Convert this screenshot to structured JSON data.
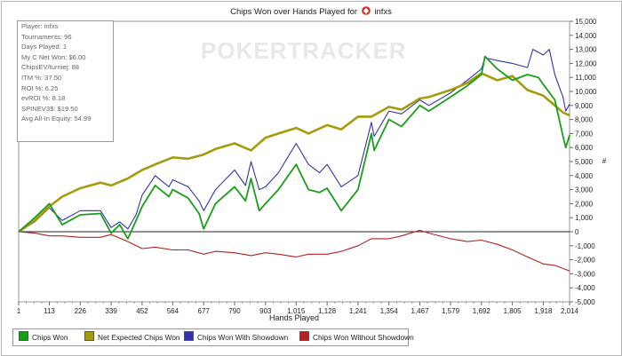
{
  "title": {
    "prefix": "Chips Won over Hands Played for",
    "player": "infxs",
    "logo_icon": "pokerstars-spade-icon"
  },
  "watermark": "POKERTRACKER",
  "stats": [
    "Player: infxs",
    "Tournaments: 96",
    "Days Played: 1",
    "My C Net Won: $6.00",
    "ChipsEV/turniej: 88",
    "ITM %: 37.50",
    "ROI %: 6.25",
    "evROI %: 8.18",
    "SPINEV3$: $19.50",
    "Avg All-In Equity: 54.99"
  ],
  "legend": [
    {
      "label": "Chips Won",
      "color": "#1a9e1a"
    },
    {
      "label": "Net Expected Chips Won",
      "color": "#a39c0c"
    },
    {
      "label": "Chips Won With Showdown",
      "color": "#3333aa"
    },
    {
      "label": "Chips Won Without Showdown",
      "color": "#b22222"
    }
  ],
  "chart_data": {
    "type": "line",
    "xlabel": "Hands Played",
    "ylabel": "",
    "y_axis_side": "right",
    "xlim": [
      1,
      2014
    ],
    "ylim": [
      -5000,
      15000
    ],
    "x_ticks": [
      "1",
      "113",
      "226",
      "339",
      "452",
      "564",
      "677",
      "790",
      "903",
      "1,015",
      "1,128",
      "1,241",
      "1,354",
      "1,467",
      "1,579",
      "1,692",
      "1,805",
      "1,918",
      "2,014"
    ],
    "x_tick_values": [
      1,
      113,
      226,
      339,
      452,
      564,
      677,
      790,
      903,
      1015,
      1128,
      1241,
      1354,
      1467,
      1579,
      1692,
      1805,
      1918,
      2014
    ],
    "y_ticks": [
      "-5,000",
      "-4,000",
      "-3,000",
      "-2,000",
      "-1,000",
      "0",
      "1,000",
      "2,000",
      "3,000",
      "4,000",
      "5,000",
      "6,000",
      "7,000",
      "8,000",
      "9,000",
      "10,000",
      "11,000",
      "12,000",
      "13,000",
      "14,000",
      "15,000"
    ],
    "y_tick_values": [
      -5000,
      -4000,
      -3000,
      -2000,
      -1000,
      0,
      1000,
      2000,
      3000,
      4000,
      5000,
      6000,
      7000,
      8000,
      9000,
      10000,
      11000,
      12000,
      13000,
      14000,
      15000
    ],
    "grid": false,
    "legend_position": "bottom",
    "series": [
      {
        "name": "Chips Won",
        "color": "#1a9e1a",
        "points": [
          [
            1,
            0
          ],
          [
            60,
            1000
          ],
          [
            113,
            2000
          ],
          [
            160,
            500
          ],
          [
            226,
            1200
          ],
          [
            300,
            1300
          ],
          [
            339,
            -100
          ],
          [
            370,
            500
          ],
          [
            400,
            -500
          ],
          [
            430,
            800
          ],
          [
            452,
            1800
          ],
          [
            500,
            3300
          ],
          [
            550,
            2500
          ],
          [
            564,
            3000
          ],
          [
            620,
            2400
          ],
          [
            660,
            1300
          ],
          [
            677,
            200
          ],
          [
            720,
            2000
          ],
          [
            790,
            3200
          ],
          [
            830,
            2200
          ],
          [
            850,
            3800
          ],
          [
            880,
            1500
          ],
          [
            903,
            2000
          ],
          [
            950,
            3000
          ],
          [
            1015,
            4800
          ],
          [
            1060,
            3000
          ],
          [
            1100,
            2800
          ],
          [
            1128,
            3100
          ],
          [
            1180,
            1500
          ],
          [
            1241,
            3000
          ],
          [
            1290,
            7000
          ],
          [
            1300,
            5800
          ],
          [
            1354,
            8000
          ],
          [
            1400,
            7500
          ],
          [
            1467,
            9000
          ],
          [
            1500,
            8600
          ],
          [
            1579,
            9600
          ],
          [
            1640,
            10400
          ],
          [
            1692,
            11200
          ],
          [
            1705,
            12500
          ],
          [
            1750,
            11600
          ],
          [
            1805,
            10800
          ],
          [
            1860,
            11200
          ],
          [
            1900,
            11000
          ],
          [
            1918,
            10500
          ],
          [
            1960,
            9400
          ],
          [
            1990,
            6800
          ],
          [
            2000,
            6000
          ],
          [
            2014,
            6900
          ]
        ]
      },
      {
        "name": "Net Expected Chips Won",
        "color": "#a39c0c",
        "points": [
          [
            1,
            0
          ],
          [
            60,
            800
          ],
          [
            113,
            1800
          ],
          [
            160,
            2500
          ],
          [
            226,
            3100
          ],
          [
            300,
            3500
          ],
          [
            339,
            3300
          ],
          [
            400,
            3800
          ],
          [
            452,
            4400
          ],
          [
            500,
            4800
          ],
          [
            564,
            5300
          ],
          [
            620,
            5200
          ],
          [
            677,
            5500
          ],
          [
            720,
            5900
          ],
          [
            790,
            6300
          ],
          [
            850,
            5800
          ],
          [
            903,
            6700
          ],
          [
            950,
            7000
          ],
          [
            1015,
            7400
          ],
          [
            1060,
            7000
          ],
          [
            1128,
            7600
          ],
          [
            1180,
            7300
          ],
          [
            1241,
            8200
          ],
          [
            1290,
            8200
          ],
          [
            1354,
            8900
          ],
          [
            1400,
            8700
          ],
          [
            1467,
            9500
          ],
          [
            1500,
            9600
          ],
          [
            1579,
            10100
          ],
          [
            1640,
            10600
          ],
          [
            1692,
            11300
          ],
          [
            1750,
            10800
          ],
          [
            1805,
            11100
          ],
          [
            1860,
            10100
          ],
          [
            1918,
            9700
          ],
          [
            1960,
            9000
          ],
          [
            1990,
            8500
          ],
          [
            2014,
            8300
          ]
        ]
      },
      {
        "name": "Chips Won With Showdown",
        "color": "#3333aa",
        "points": [
          [
            1,
            0
          ],
          [
            60,
            700
          ],
          [
            113,
            1700
          ],
          [
            160,
            800
          ],
          [
            226,
            1500
          ],
          [
            300,
            1500
          ],
          [
            339,
            300
          ],
          [
            370,
            700
          ],
          [
            400,
            200
          ],
          [
            430,
            1200
          ],
          [
            452,
            2600
          ],
          [
            500,
            4000
          ],
          [
            550,
            3200
          ],
          [
            564,
            3700
          ],
          [
            620,
            3200
          ],
          [
            660,
            2200
          ],
          [
            677,
            1500
          ],
          [
            720,
            3000
          ],
          [
            790,
            4400
          ],
          [
            830,
            3300
          ],
          [
            850,
            5000
          ],
          [
            880,
            3000
          ],
          [
            903,
            3200
          ],
          [
            950,
            4200
          ],
          [
            1015,
            6300
          ],
          [
            1060,
            4800
          ],
          [
            1100,
            4200
          ],
          [
            1128,
            4800
          ],
          [
            1180,
            3200
          ],
          [
            1241,
            4000
          ],
          [
            1290,
            7800
          ],
          [
            1300,
            6800
          ],
          [
            1354,
            8600
          ],
          [
            1400,
            8400
          ],
          [
            1467,
            9400
          ],
          [
            1500,
            9000
          ],
          [
            1579,
            9900
          ],
          [
            1640,
            10800
          ],
          [
            1692,
            11600
          ],
          [
            1705,
            12400
          ],
          [
            1750,
            12200
          ],
          [
            1805,
            12000
          ],
          [
            1860,
            11700
          ],
          [
            1880,
            13000
          ],
          [
            1918,
            12600
          ],
          [
            1940,
            13000
          ],
          [
            1960,
            11200
          ],
          [
            1990,
            9600
          ],
          [
            2000,
            8600
          ],
          [
            2014,
            9100
          ]
        ]
      },
      {
        "name": "Chips Won Without Showdown",
        "color": "#b22222",
        "points": [
          [
            1,
            0
          ],
          [
            60,
            -100
          ],
          [
            113,
            -300
          ],
          [
            160,
            -300
          ],
          [
            226,
            -400
          ],
          [
            300,
            -400
          ],
          [
            339,
            -200
          ],
          [
            400,
            -700
          ],
          [
            452,
            -1200
          ],
          [
            500,
            -1100
          ],
          [
            564,
            -1300
          ],
          [
            620,
            -1300
          ],
          [
            677,
            -1600
          ],
          [
            720,
            -1400
          ],
          [
            790,
            -1500
          ],
          [
            850,
            -1700
          ],
          [
            903,
            -1500
          ],
          [
            950,
            -1600
          ],
          [
            1015,
            -1800
          ],
          [
            1060,
            -1600
          ],
          [
            1128,
            -1600
          ],
          [
            1180,
            -1400
          ],
          [
            1241,
            -1000
          ],
          [
            1290,
            -500
          ],
          [
            1354,
            -500
          ],
          [
            1400,
            -300
          ],
          [
            1467,
            100
          ],
          [
            1500,
            -100
          ],
          [
            1579,
            -500
          ],
          [
            1640,
            -700
          ],
          [
            1692,
            -600
          ],
          [
            1750,
            -900
          ],
          [
            1805,
            -1300
          ],
          [
            1860,
            -1800
          ],
          [
            1918,
            -2300
          ],
          [
            1960,
            -2400
          ],
          [
            2014,
            -2800
          ]
        ]
      }
    ]
  }
}
